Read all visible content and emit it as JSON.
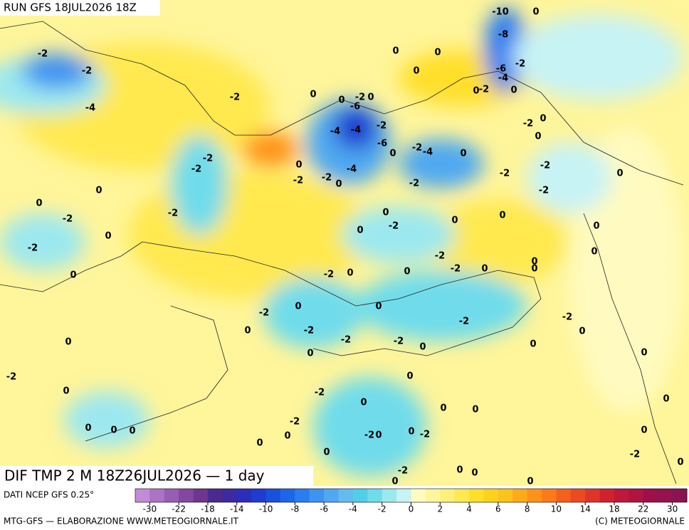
{
  "header": {
    "title": "RUN GFS 18JUL2026 18Z"
  },
  "map": {
    "caption": "DIF TMP 2 M 18Z26JUL2026 — 1 day",
    "contour_labels": [
      "-10",
      "0",
      "-2",
      "-8",
      "0",
      "0",
      "-2",
      "0",
      "-6",
      "-2",
      "-4",
      "0",
      "-2",
      "0",
      "-2",
      "0",
      "0",
      "-2",
      "0",
      "-4",
      "-6",
      "-2",
      "-2",
      "0",
      "-4",
      "-4",
      "0",
      "-6",
      "0",
      "-2",
      "-4",
      "0",
      "-2",
      "-2",
      "0",
      "-4",
      "-2",
      "-2",
      "0",
      "-2",
      "-2",
      "0",
      "-2",
      "0",
      "-2",
      "0",
      "-2",
      "0",
      "-2",
      "0",
      "0",
      "-2",
      "0",
      "0",
      "0",
      "-2",
      "0",
      "-2",
      "0",
      "-2",
      "0",
      "0",
      "-2",
      "0",
      "0",
      "0",
      "0",
      "-2",
      "0",
      "-2",
      "-2",
      "0",
      "-2",
      "0",
      "-2",
      "-2",
      "0",
      "0",
      "0",
      "0",
      "0",
      "-2",
      "0",
      "0",
      "-2",
      "0",
      "0",
      "0",
      "0",
      "-2",
      "0",
      "0",
      "0",
      "0",
      "-2",
      "0",
      "0",
      "-2",
      "0",
      "0",
      "-2",
      "0",
      "0",
      "-2",
      "0",
      "0",
      "0",
      "0"
    ]
  },
  "legend": {
    "source": "DATI NCEP GFS 0.25°",
    "ticks": [
      -30,
      -22,
      -18,
      -14,
      -10,
      -8,
      -6,
      -4,
      -2,
      0,
      2,
      4,
      6,
      8,
      10,
      14,
      18,
      22,
      30
    ],
    "colors": [
      "#c38bd6",
      "#ad72c4",
      "#9a5cb3",
      "#8546a2",
      "#6f3591",
      "#4a2a8e",
      "#3b2aa0",
      "#2c2db8",
      "#1f3bd0",
      "#1a50e0",
      "#1c66ea",
      "#2a7df0",
      "#3d93f2",
      "#4fa8f0",
      "#64bbee",
      "#4fd0e8",
      "#6fdceb",
      "#9ce8ef",
      "#c7f3f5",
      "#fffbc0",
      "#fff59a",
      "#fff07a",
      "#ffe94f",
      "#ffdf2a",
      "#ffd21a",
      "#ffc21a",
      "#ffaa18",
      "#ff9218",
      "#ff7a1a",
      "#f5601e",
      "#ec4a22",
      "#e03428",
      "#d0222e",
      "#c01838",
      "#b01440",
      "#a01048",
      "#96124e",
      "#8a1452"
    ]
  },
  "footer": {
    "left": "MTG-GFS — ELABORAZIONE WWW.METEOGIORNALE.IT",
    "right": "(C) METEOGIORNALE"
  }
}
